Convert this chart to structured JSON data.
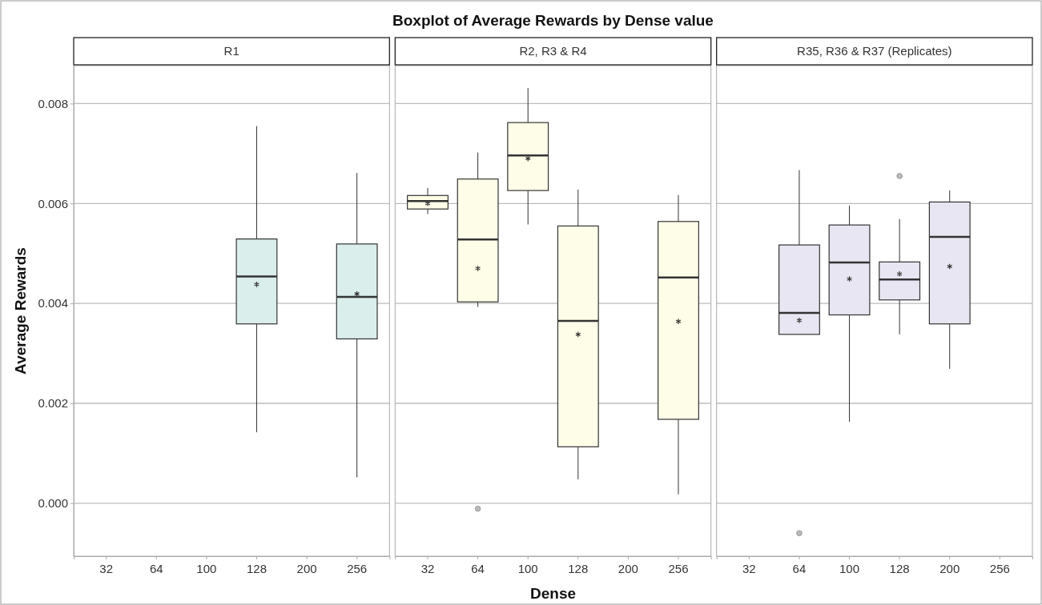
{
  "chart_data": [
    {
      "type": "box",
      "title": "R1",
      "annotations": [
        "Boxplot of Average Rewards by Dense value"
      ],
      "ylabel": "Average Rewards",
      "categories": [
        "32",
        "64",
        "100",
        "128",
        "200",
        "256"
      ],
      "ylim": [
        -0.00106,
        0.00876
      ],
      "yticks": [
        {
          "value": 0,
          "label": "0.000"
        },
        {
          "value": 0.002,
          "label": "0.002"
        },
        {
          "value": 0.004,
          "label": "0.004"
        },
        {
          "value": 0.006,
          "label": "0.006"
        },
        {
          "value": 0.008,
          "label": "0.008"
        }
      ],
      "grid": "y",
      "series": [
        {
          "color": "#daeeeb",
          "boxes": [
            null,
            null,
            null,
            {
              "low": 0.00142,
              "q1": 0.00359,
              "median": 0.00454,
              "q3": 0.00529,
              "high": 0.00755,
              "mean": 0.00438
            },
            null,
            {
              "low": 0.00052,
              "q1": 0.00329,
              "median": 0.00413,
              "q3": 0.00519,
              "high": 0.00661,
              "mean": 0.00419
            }
          ]
        }
      ]
    },
    {
      "type": "box",
      "title": "R2, R3 & R4",
      "xlabel": "Dense",
      "categories": [
        "32",
        "64",
        "100",
        "128",
        "200",
        "256"
      ],
      "ylim": [
        -0.00106,
        0.00876
      ],
      "yticks": [
        0,
        0.002,
        0.004,
        0.006,
        0.008
      ],
      "grid": "y",
      "tick_labels": "x",
      "series": [
        {
          "color": "#fefee8",
          "boxes": [
            {
              "low": 0.00579,
              "q1": 0.00589,
              "median": 0.00605,
              "q3": 0.00616,
              "high": 0.00631,
              "mean": 0.006
            },
            {
              "low": 0.00393,
              "q1": 0.00403,
              "median": 0.00528,
              "q3": 0.00649,
              "high": 0.00702,
              "mean": 0.0047,
              "outliers": [
                -0.00011
              ]
            },
            {
              "low": 0.00558,
              "q1": 0.00626,
              "median": 0.00696,
              "q3": 0.00762,
              "high": 0.00831,
              "mean": 0.0069
            },
            {
              "low": 0.00048,
              "q1": 0.00113,
              "median": 0.00365,
              "q3": 0.00555,
              "high": 0.00628,
              "mean": 0.00338
            },
            null,
            {
              "low": 0.00018,
              "q1": 0.00168,
              "median": 0.00452,
              "q3": 0.00564,
              "high": 0.00617,
              "mean": 0.00364
            }
          ]
        }
      ]
    },
    {
      "type": "box",
      "title": "R35, R36 & R37 (Replicates)",
      "categories": [
        "32",
        "64",
        "100",
        "128",
        "200",
        "256"
      ],
      "ylim": [
        -0.00106,
        0.00876
      ],
      "yticks": [
        0,
        0.002,
        0.004,
        0.006,
        0.008
      ],
      "grid": "y",
      "tick_labels": "x",
      "series": [
        {
          "color": "#e8e6f2",
          "boxes": [
            null,
            {
              "low": 0.00338,
              "q1": 0.00338,
              "median": 0.00381,
              "q3": 0.00517,
              "high": 0.00667,
              "mean": 0.00366,
              "outliers": [
                -0.0006
              ]
            },
            {
              "low": 0.00163,
              "q1": 0.00377,
              "median": 0.00482,
              "q3": 0.00557,
              "high": 0.00596,
              "mean": 0.00449
            },
            {
              "low": 0.00338,
              "q1": 0.00407,
              "median": 0.00448,
              "q3": 0.00483,
              "high": 0.00569,
              "mean": 0.00459,
              "outliers": [
                0.00655
              ]
            },
            {
              "low": 0.00269,
              "q1": 0.00359,
              "median": 0.00533,
              "q3": 0.00603,
              "high": 0.00626,
              "mean": 0.00474
            },
            null
          ]
        }
      ]
    }
  ]
}
